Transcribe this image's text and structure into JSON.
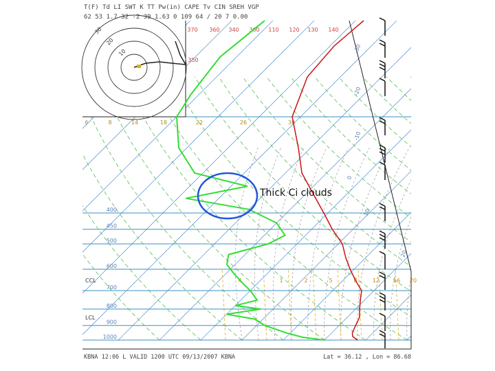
{
  "header": {
    "row1": "T(F)  Td    LI  SWT  K  TT  Pw(in)  CAPE  Tv  CIN  SREH  VGP",
    "row2": "62    53   1.7   32  -2  39  1.63   0   109  64 / 20  7  0.00"
  },
  "footer": {
    "left": "KBNA 12:06 L  VALID 1200 UTC 09/13/2007   KBNA",
    "right": "Lat = 36.12 , Lon = 86.68"
  },
  "annotation": {
    "text": "Thick Ci clouds"
  },
  "colors": {
    "temperature": "#cc1111",
    "dewpoint": "#33dd33",
    "isobar": "#3a8fc0",
    "isotherm": "#6aa0d6",
    "dry_adiabat": "#55bb55",
    "moist_adiabat": "#999999",
    "mixing_ratio": "#e0b020",
    "annotation_circle": "#2255dd",
    "hodograph": "#222222"
  },
  "chart_data": {
    "type": "line",
    "title": "",
    "pressure_axis": {
      "scale": "log",
      "range_hpa": [
        100,
        1000
      ],
      "ticks": [
        {
          "p": 400,
          "label": "400"
        },
        {
          "p": 450,
          "label": "450"
        },
        {
          "p": 500,
          "label": "500"
        },
        {
          "p": 600,
          "label": "600"
        },
        {
          "p": 700,
          "label": "700"
        },
        {
          "p": 800,
          "label": "800"
        },
        {
          "p": 900,
          "label": "900"
        },
        {
          "p": 1000,
          "label": "1000"
        }
      ],
      "level_labels": [
        {
          "p": 650,
          "label": "CCL"
        },
        {
          "p": 850,
          "label": "LCL"
        }
      ]
    },
    "upper_labels": [
      "370",
      "360",
      "340",
      "300",
      "110",
      "120",
      "130",
      "140",
      "350"
    ],
    "mid_labels": [
      "6",
      "8",
      "14",
      "18",
      "22",
      "26",
      "30"
    ],
    "mixing_ratio_labels": [
      "4",
      "1",
      "2",
      "5",
      "8",
      "12",
      "16",
      "20"
    ],
    "isotherm_labels": [
      "-30",
      "-20",
      "-10",
      "0",
      "10",
      "20"
    ],
    "series": [
      {
        "name": "",
        "type": "temperature",
        "points": [
          {
            "p": 100,
            "t": -58
          },
          {
            "p": 120,
            "t": -59
          },
          {
            "p": 150,
            "t": -58
          },
          {
            "p": 200,
            "t": -52
          },
          {
            "p": 250,
            "t": -43
          },
          {
            "p": 300,
            "t": -36
          },
          {
            "p": 350,
            "t": -28
          },
          {
            "p": 400,
            "t": -21
          },
          {
            "p": 450,
            "t": -15
          },
          {
            "p": 500,
            "t": -9
          },
          {
            "p": 550,
            "t": -5
          },
          {
            "p": 600,
            "t": -1
          },
          {
            "p": 650,
            "t": 3
          },
          {
            "p": 700,
            "t": 7
          },
          {
            "p": 750,
            "t": 9
          },
          {
            "p": 800,
            "t": 11
          },
          {
            "p": 850,
            "t": 13
          },
          {
            "p": 900,
            "t": 14
          },
          {
            "p": 950,
            "t": 15
          },
          {
            "p": 975,
            "t": 16
          },
          {
            "p": 1000,
            "t": 18
          }
        ]
      },
      {
        "name": "",
        "type": "dewpoint",
        "points": [
          {
            "p": 100,
            "t": -82
          },
          {
            "p": 130,
            "t": -84
          },
          {
            "p": 170,
            "t": -82
          },
          {
            "p": 200,
            "t": -80
          },
          {
            "p": 250,
            "t": -72
          },
          {
            "p": 300,
            "t": -62
          },
          {
            "p": 330,
            "t": -46
          },
          {
            "p": 360,
            "t": -58
          },
          {
            "p": 390,
            "t": -40
          },
          {
            "p": 430,
            "t": -30
          },
          {
            "p": 470,
            "t": -25
          },
          {
            "p": 500,
            "t": -27
          },
          {
            "p": 540,
            "t": -34
          },
          {
            "p": 580,
            "t": -32
          },
          {
            "p": 620,
            "t": -28
          },
          {
            "p": 660,
            "t": -24
          },
          {
            "p": 700,
            "t": -20
          },
          {
            "p": 750,
            "t": -16
          },
          {
            "p": 780,
            "t": -20
          },
          {
            "p": 800,
            "t": -13
          },
          {
            "p": 830,
            "t": -20
          },
          {
            "p": 860,
            "t": -12
          },
          {
            "p": 900,
            "t": -8
          },
          {
            "p": 950,
            "t": -1
          },
          {
            "p": 980,
            "t": 4
          },
          {
            "p": 1000,
            "t": 10
          }
        ]
      }
    ],
    "wind_barbs_right": 14,
    "hodograph": {
      "rings": 4,
      "labels": [
        "30",
        "20",
        "10"
      ]
    },
    "grid": true
  }
}
